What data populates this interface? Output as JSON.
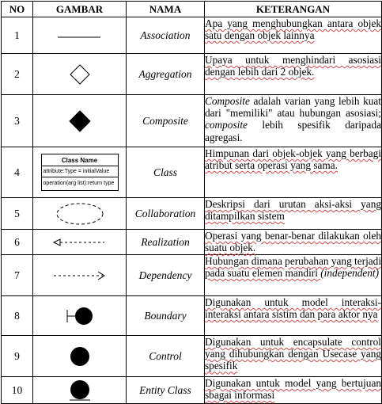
{
  "headers": {
    "no": "NO",
    "gambar": "GAMBAR",
    "nama": "NAMA",
    "keterangan": "KETERANGAN"
  },
  "rows": [
    {
      "no": "1",
      "nama": "Association",
      "icon": "association-line-icon",
      "ket": "Apa yang menghubungkan antara objek satu dengan objek lainnya"
    },
    {
      "no": "2",
      "nama": "Aggregation",
      "icon": "hollow-diamond-icon",
      "ket": "Upaya untuk menghindari asosiasi dengan lebih dari 2 objek."
    },
    {
      "no": "3",
      "nama": "Composite",
      "icon": "filled-diamond-icon",
      "ket_parts": [
        {
          "text": "Composite",
          "italic": true
        },
        {
          "text": " adalah varian yang lebih kuat dari \"memiliki\" atau hubungan asosiasi; "
        },
        {
          "text": "composite",
          "italic": true
        },
        {
          "text": " lebih spesifik daripada agregasi."
        }
      ]
    },
    {
      "no": "4",
      "nama": "Class",
      "icon": "class-box-icon",
      "class_box": {
        "title": "Class Name",
        "attribute": "attribute:Type = initialValue",
        "operation": "operation(arg list):return type"
      },
      "ket": "Himpunan dari objek-objek yang berbagi atribut serta operasi yang sama."
    },
    {
      "no": "5",
      "nama": "Collaboration",
      "icon": "dashed-ellipse-icon",
      "ket": "Deskripsi dari urutan aksi-aksi yang ditampilkan sistem"
    },
    {
      "no": "6",
      "nama": "Realization",
      "icon": "realization-arrow-icon",
      "ket": "Operasi yang benar-benar dilakukan oleh suatu objek."
    },
    {
      "no": "7",
      "nama": "Dependency",
      "icon": "dependency-arrow-icon",
      "ket_parts": [
        {
          "text": "Hubungan dimana perubahan yang terjadi pada suatu elemen mandiri "
        },
        {
          "text": "(independent)",
          "italic": true
        }
      ]
    },
    {
      "no": "8",
      "nama": "Boundary",
      "icon": "boundary-icon",
      "ket": "Digunakan untuk model interaksi-interaksi antara sistim dan para aktor nya"
    },
    {
      "no": "9",
      "nama": "Control",
      "icon": "control-circle-icon",
      "ket": "Digunakan untuk encapsulate control yang dihubungkan dengan Usecase yang spesifik"
    },
    {
      "no": "10",
      "nama": "Entity Class",
      "icon": "entity-circle-icon",
      "ket": "Digunakan untuk model yang bertujuan sbagai informasi"
    }
  ]
}
